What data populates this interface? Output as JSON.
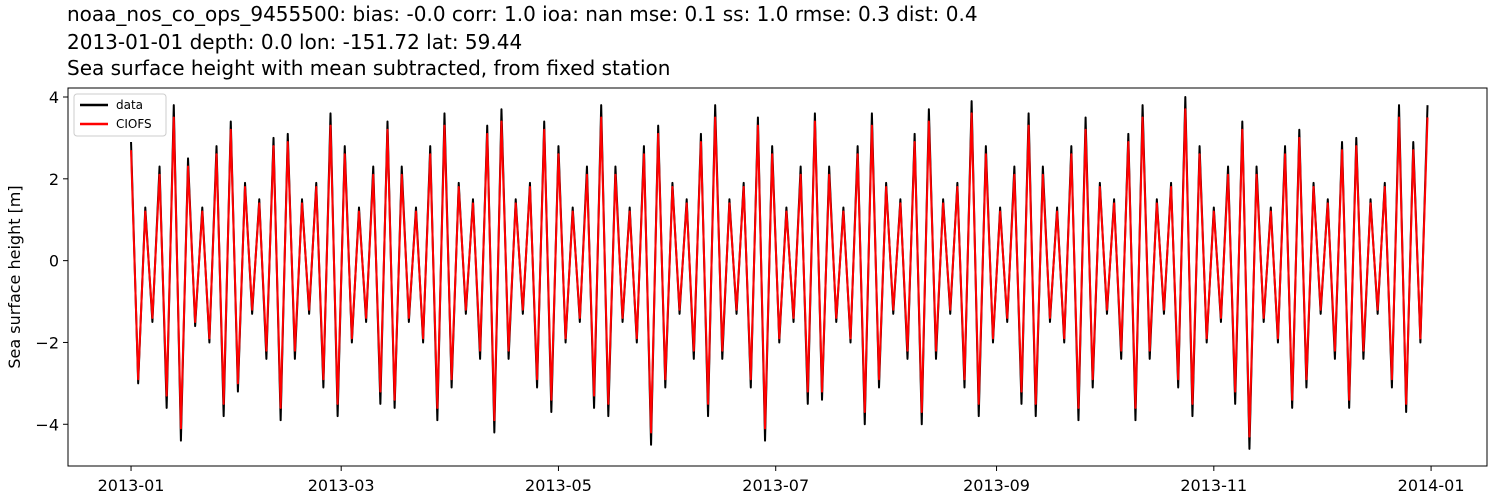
{
  "chart_data": {
    "type": "line",
    "title_lines": [
      "noaa_nos_co_ops_9455500: bias: -0.0  corr: 1.0  ioa: nan  mse: 0.1  ss: 1.0  rmse: 0.3  dist: 0.4",
      "2013-01-01 depth: 0.0 lon: -151.72 lat: 59.44",
      "Sea surface height with mean subtracted, from fixed station"
    ],
    "ylabel": "Sea surface height [m]",
    "xlim": [
      -17.7,
      380.7
    ],
    "xticks": [
      {
        "value": 0,
        "label": "2013-01"
      },
      {
        "value": 59,
        "label": "2013-03"
      },
      {
        "value": 120,
        "label": "2013-05"
      },
      {
        "value": 181,
        "label": "2013-07"
      },
      {
        "value": 243,
        "label": "2013-09"
      },
      {
        "value": 304,
        "label": "2013-11"
      },
      {
        "value": 365,
        "label": "2014-01"
      }
    ],
    "ylim": [
      -5.02,
      4.22
    ],
    "yticks": [
      {
        "value": -4,
        "label": "−4"
      },
      {
        "value": -2,
        "label": "−2"
      },
      0,
      2,
      4
    ],
    "legend": "upper left",
    "x": [
      0,
      2,
      4,
      6,
      8,
      10,
      12,
      14,
      16,
      18,
      20,
      22,
      24,
      26,
      28,
      30,
      32,
      34,
      36,
      38,
      40,
      42,
      44,
      46,
      48,
      50,
      52,
      54,
      56,
      58,
      60,
      62,
      64,
      66,
      68,
      70,
      72,
      74,
      76,
      78,
      80,
      82,
      84,
      86,
      88,
      90,
      92,
      94,
      96,
      98,
      100,
      102,
      104,
      106,
      108,
      110,
      112,
      114,
      116,
      118,
      120,
      122,
      124,
      126,
      128,
      130,
      132,
      134,
      136,
      138,
      140,
      142,
      144,
      146,
      148,
      150,
      152,
      154,
      156,
      158,
      160,
      162,
      164,
      166,
      168,
      170,
      172,
      174,
      176,
      178,
      180,
      182,
      184,
      186,
      188,
      190,
      192,
      194,
      196,
      198,
      200,
      202,
      204,
      206,
      208,
      210,
      212,
      214,
      216,
      218,
      220,
      222,
      224,
      226,
      228,
      230,
      232,
      234,
      236,
      238,
      240,
      242,
      244,
      246,
      248,
      250,
      252,
      254,
      256,
      258,
      260,
      262,
      264,
      266,
      268,
      270,
      272,
      274,
      276,
      278,
      280,
      282,
      284,
      286,
      288,
      290,
      292,
      294,
      296,
      298,
      300,
      302,
      304,
      306,
      308,
      310,
      312,
      314,
      316,
      318,
      320,
      322,
      324,
      326,
      328,
      330,
      332,
      334,
      336,
      338,
      340,
      342,
      344,
      346,
      348,
      350,
      352,
      354,
      356,
      358,
      360,
      362,
      364
    ],
    "series": [
      {
        "name": "data",
        "color": "#000000",
        "values": [
          2.9,
          -3.0,
          1.3,
          -1.5,
          2.3,
          -3.6,
          3.8,
          -4.4,
          2.5,
          -1.6,
          1.3,
          -2.0,
          2.8,
          -3.8,
          3.4,
          -3.2,
          1.9,
          -1.3,
          1.5,
          -2.4,
          3.0,
          -3.9,
          3.1,
          -2.4,
          1.5,
          -1.3,
          1.9,
          -3.1,
          3.6,
          -3.8,
          2.8,
          -2.0,
          1.3,
          -1.5,
          2.3,
          -3.5,
          3.4,
          -3.6,
          2.3,
          -1.5,
          1.3,
          -2.0,
          2.8,
          -3.9,
          3.6,
          -3.1,
          1.9,
          -1.3,
          1.5,
          -2.4,
          3.3,
          -4.2,
          3.7,
          -2.4,
          1.5,
          -1.3,
          1.9,
          -3.1,
          3.4,
          -3.7,
          2.8,
          -2.0,
          1.3,
          -1.5,
          2.3,
          -3.6,
          3.8,
          -3.8,
          2.3,
          -1.5,
          1.3,
          -2.0,
          2.8,
          -4.5,
          3.3,
          -3.1,
          1.9,
          -1.3,
          1.5,
          -2.4,
          3.1,
          -3.8,
          3.8,
          -2.4,
          1.5,
          -1.3,
          1.9,
          -3.1,
          3.5,
          -4.4,
          2.8,
          -2.0,
          1.3,
          -1.5,
          2.3,
          -3.5,
          3.6,
          -3.4,
          2.3,
          -1.5,
          1.3,
          -2.0,
          2.8,
          -4.0,
          3.6,
          -3.1,
          1.9,
          -1.3,
          1.5,
          -2.4,
          3.1,
          -4.0,
          3.7,
          -2.4,
          1.5,
          -1.3,
          1.9,
          -3.1,
          3.9,
          -3.8,
          2.8,
          -2.0,
          1.3,
          -1.5,
          2.3,
          -3.5,
          3.6,
          -3.8,
          2.3,
          -1.5,
          1.3,
          -2.0,
          2.8,
          -3.9,
          3.5,
          -3.1,
          1.9,
          -1.3,
          1.5,
          -2.4,
          3.1,
          -3.9,
          3.8,
          -2.4,
          1.5,
          -1.3,
          1.9,
          -3.1,
          4.0,
          -3.8,
          2.8,
          -2.0,
          1.3,
          -1.5,
          2.3,
          -3.5,
          3.4,
          -4.6,
          2.3,
          -1.5,
          1.3,
          -2.0,
          2.8,
          -3.6,
          3.2,
          -3.1,
          1.9,
          -1.3,
          1.5,
          -2.4,
          2.9,
          -3.6,
          3.0,
          -2.4,
          1.5,
          -1.3,
          1.9,
          -3.1,
          3.8,
          -3.7,
          2.9,
          -2.0,
          3.8
        ]
      },
      {
        "name": "CIOFS",
        "color": "#ff0000",
        "values": [
          2.7,
          -2.9,
          1.2,
          -1.4,
          2.1,
          -3.3,
          3.5,
          -4.1,
          2.3,
          -1.5,
          1.2,
          -1.9,
          2.6,
          -3.5,
          3.2,
          -3.0,
          1.8,
          -1.2,
          1.4,
          -2.2,
          2.8,
          -3.6,
          2.9,
          -2.2,
          1.4,
          -1.2,
          1.8,
          -2.9,
          3.3,
          -3.5,
          2.6,
          -1.9,
          1.2,
          -1.4,
          2.1,
          -3.2,
          3.2,
          -3.4,
          2.1,
          -1.4,
          1.2,
          -1.9,
          2.6,
          -3.6,
          3.3,
          -2.9,
          1.8,
          -1.2,
          1.4,
          -2.2,
          3.1,
          -3.9,
          3.4,
          -2.2,
          1.4,
          -1.2,
          1.8,
          -2.9,
          3.2,
          -3.4,
          2.6,
          -1.9,
          1.2,
          -1.4,
          2.1,
          -3.3,
          3.5,
          -3.5,
          2.1,
          -1.4,
          1.2,
          -1.9,
          2.6,
          -4.2,
          3.1,
          -2.9,
          1.8,
          -1.2,
          1.4,
          -2.2,
          2.9,
          -3.5,
          3.5,
          -2.2,
          1.4,
          -1.2,
          1.8,
          -2.9,
          3.3,
          -4.1,
          2.6,
          -1.9,
          1.2,
          -1.4,
          2.1,
          -3.2,
          3.4,
          -3.2,
          2.1,
          -1.4,
          1.2,
          -1.9,
          2.6,
          -3.7,
          3.3,
          -2.9,
          1.8,
          -1.2,
          1.4,
          -2.2,
          2.9,
          -3.7,
          3.4,
          -2.2,
          1.4,
          -1.2,
          1.8,
          -2.9,
          3.6,
          -3.5,
          2.6,
          -1.9,
          1.2,
          -1.4,
          2.1,
          -3.2,
          3.3,
          -3.5,
          2.1,
          -1.4,
          1.2,
          -1.9,
          2.6,
          -3.6,
          3.2,
          -2.9,
          1.8,
          -1.2,
          1.4,
          -2.2,
          2.9,
          -3.6,
          3.5,
          -2.2,
          1.4,
          -1.2,
          1.8,
          -2.9,
          3.7,
          -3.5,
          2.6,
          -1.9,
          1.2,
          -1.4,
          2.1,
          -3.2,
          3.2,
          -4.3,
          2.1,
          -1.4,
          1.2,
          -1.9,
          2.6,
          -3.4,
          3.0,
          -2.9,
          1.8,
          -1.2,
          1.4,
          -2.2,
          2.7,
          -3.4,
          2.8,
          -2.2,
          1.4,
          -1.2,
          1.8,
          -2.9,
          3.5,
          -3.5,
          2.7,
          -1.9,
          3.5
        ]
      }
    ]
  }
}
